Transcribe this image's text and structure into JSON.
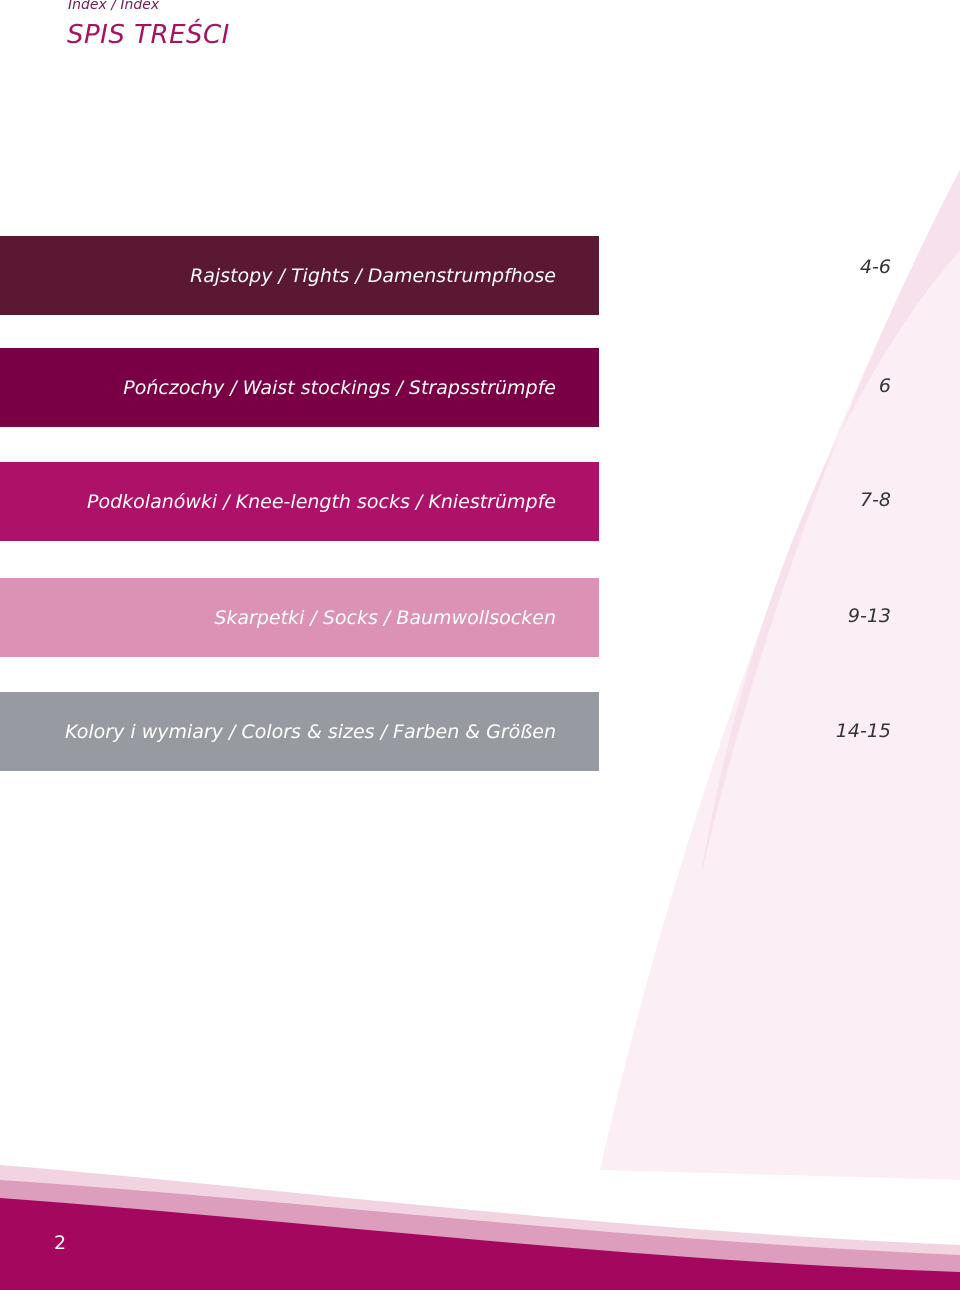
{
  "header": {
    "breadcrumb": "Index /  Index",
    "title": "SPIS TREŚCI"
  },
  "toc": [
    {
      "label": "Rajstopy  /  Tights  /  Damenstrumpfhose",
      "pages": "4-6",
      "color": "#5a1832"
    },
    {
      "label": "Pończochy  /  Waist stockings  /  Strapsstrümpfe",
      "pages": "6",
      "color": "#7a0045"
    },
    {
      "label": "Podkolanówki  /  Knee-length socks  /  Kniestrümpfe",
      "pages": "7-8",
      "color": "#ae1268"
    },
    {
      "label": "Skarpetki  /  Socks  /  Baumwollsocken",
      "pages": "9-13",
      "color": "#dc92b4"
    },
    {
      "label": "Kolory i wymiary /  Colors & sizes  /  Farben & Größen",
      "pages": "14-15",
      "color": "#979ba1"
    }
  ],
  "footer": {
    "page_number": "2",
    "color": "#a4075e"
  }
}
